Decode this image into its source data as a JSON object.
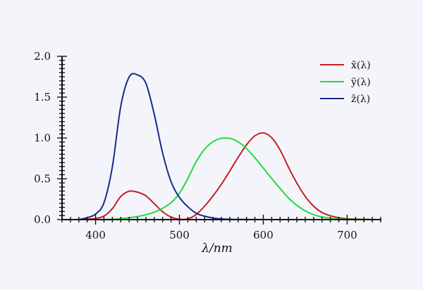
{
  "chart_data": {
    "type": "line",
    "title": "",
    "xlabel": "λ/nm",
    "ylabel": "",
    "xlim": [
      360,
      740
    ],
    "ylim": [
      0,
      2.0
    ],
    "xticks": [
      400,
      500,
      600,
      700
    ],
    "xtick_labels": [
      "400",
      "500",
      "600",
      "700"
    ],
    "yticks": [
      0,
      0.5,
      1.0,
      1.5,
      2.0
    ],
    "ytick_labels": [
      "0.0",
      "0.5",
      "1.0",
      "1.5",
      "2.0"
    ],
    "grid": false,
    "legend_position": "top-right",
    "x": [
      380,
      390,
      400,
      410,
      420,
      430,
      440,
      450,
      460,
      470,
      480,
      490,
      500,
      510,
      520,
      530,
      540,
      550,
      560,
      570,
      580,
      590,
      600,
      610,
      620,
      630,
      640,
      650,
      660,
      670,
      680,
      690,
      700,
      710,
      720,
      730,
      740
    ],
    "series": [
      {
        "name": "x̄(λ)",
        "color": "#c81d25",
        "values": [
          0.0,
          0.005,
          0.014,
          0.043,
          0.134,
          0.283,
          0.348,
          0.336,
          0.291,
          0.195,
          0.096,
          0.032,
          0.005,
          0.009,
          0.063,
          0.165,
          0.29,
          0.433,
          0.595,
          0.762,
          0.916,
          1.026,
          1.062,
          1.003,
          0.854,
          0.642,
          0.448,
          0.284,
          0.165,
          0.087,
          0.047,
          0.023,
          0.011,
          0.006,
          0.003,
          0.001,
          0.0
        ]
      },
      {
        "name": "ȳ(λ)",
        "color": "#22d840",
        "values": [
          0.0,
          0.0,
          0.0,
          0.001,
          0.004,
          0.012,
          0.023,
          0.038,
          0.06,
          0.091,
          0.139,
          0.208,
          0.323,
          0.503,
          0.71,
          0.862,
          0.954,
          0.995,
          0.995,
          0.952,
          0.87,
          0.757,
          0.631,
          0.503,
          0.381,
          0.265,
          0.175,
          0.107,
          0.061,
          0.032,
          0.017,
          0.008,
          0.004,
          0.002,
          0.001,
          0.0,
          0.0
        ]
      },
      {
        "name": "z̄(λ)",
        "color": "#1b2a8a",
        "values": [
          0.0,
          0.024,
          0.068,
          0.207,
          0.646,
          1.386,
          1.747,
          1.772,
          1.669,
          1.288,
          0.813,
          0.465,
          0.272,
          0.158,
          0.078,
          0.042,
          0.02,
          0.009,
          0.004,
          0.002,
          0.002,
          0.001,
          0.001,
          0.0,
          0.0,
          0.0,
          0.0,
          0.0,
          0.0,
          0.0,
          0.0,
          0.0,
          0.0,
          0.0,
          0.0,
          0.0,
          0.0
        ]
      }
    ]
  }
}
